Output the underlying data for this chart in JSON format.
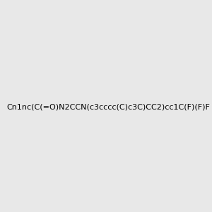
{
  "smiles": "Cn1nc(C(=O)N2CCN(c3cccc(C)c3C)CC2)cc1C(F)(F)F",
  "img_size": [
    300,
    300
  ],
  "background_color": "#e8e8e8",
  "atom_colors": {
    "N": [
      0,
      0,
      200
    ],
    "O": [
      200,
      0,
      0
    ],
    "F": [
      255,
      0,
      255
    ]
  },
  "title": ""
}
